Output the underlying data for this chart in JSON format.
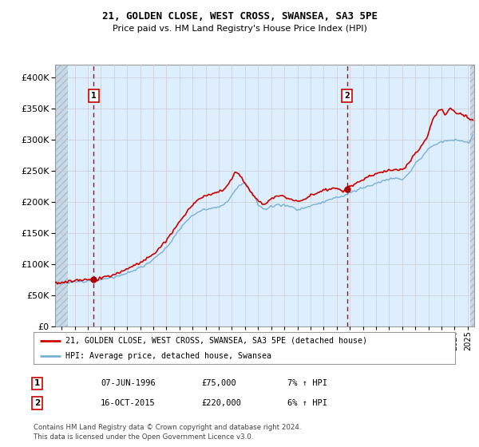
{
  "title1": "21, GOLDEN CLOSE, WEST CROSS, SWANSEA, SA3 5PE",
  "title2": "Price paid vs. HM Land Registry's House Price Index (HPI)",
  "legend_label1": "21, GOLDEN CLOSE, WEST CROSS, SWANSEA, SA3 5PE (detached house)",
  "legend_label2": "HPI: Average price, detached house, Swansea",
  "sale1_label": "1",
  "sale1_date": "07-JUN-1996",
  "sale1_price": "£75,000",
  "sale1_hpi": "7% ↑ HPI",
  "sale2_label": "2",
  "sale2_date": "16-OCT-2015",
  "sale2_price": "£220,000",
  "sale2_hpi": "6% ↑ HPI",
  "footer": "Contains HM Land Registry data © Crown copyright and database right 2024.\nThis data is licensed under the Open Government Licence v3.0.",
  "line1_color": "#cc0000",
  "line2_color": "#7ab0d4",
  "sale_marker_color": "#aa0000",
  "vline_color": "#cc0000",
  "grid_color": "#cccccc",
  "bg_color": "#ffffff",
  "plot_bg": "#ddeeff",
  "ylim": [
    0,
    420000
  ],
  "yticks": [
    0,
    50000,
    100000,
    150000,
    200000,
    250000,
    300000,
    350000,
    400000
  ],
  "xlim_start": 1993.5,
  "xlim_end": 2025.5,
  "sale1_x": 1996.44,
  "sale1_y": 75000,
  "sale2_x": 2015.79,
  "sale2_y": 220000
}
